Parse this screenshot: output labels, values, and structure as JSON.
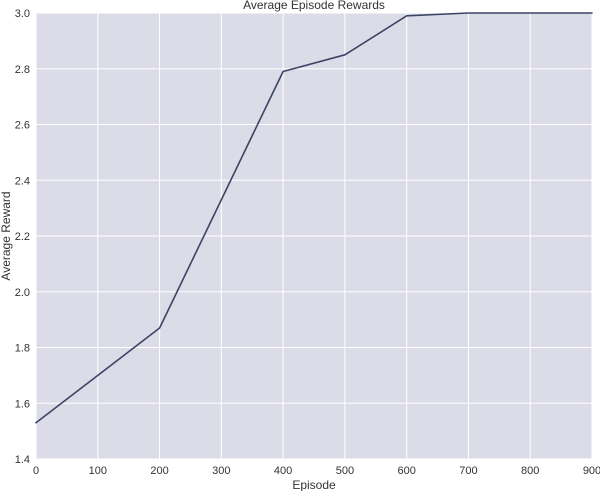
{
  "chart_data": {
    "type": "line",
    "title": "Average Episode Rewards",
    "xlabel": "Episode",
    "ylabel": "Average Reward",
    "xlim": [
      0,
      900
    ],
    "ylim": [
      1.4,
      3.0
    ],
    "xticks": [
      0,
      100,
      200,
      300,
      400,
      500,
      600,
      700,
      800,
      900
    ],
    "yticks": [
      1.4,
      1.6,
      1.8,
      2.0,
      2.2,
      2.4,
      2.6,
      2.8,
      3.0
    ],
    "ytick_labels": [
      "1.4",
      "1.6",
      "1.8",
      "2.0",
      "2.2",
      "2.4",
      "2.6",
      "2.8",
      "3.0"
    ],
    "grid": true,
    "background_color": "#dcdce8",
    "grid_color": "#ffffff",
    "line_color": "#3b4563",
    "series": [
      {
        "x": [
          0,
          200,
          400,
          500,
          600,
          700,
          800,
          900
        ],
        "y": [
          1.53,
          1.87,
          2.79,
          2.85,
          2.99,
          3.0,
          3.0,
          3.0
        ]
      }
    ]
  }
}
